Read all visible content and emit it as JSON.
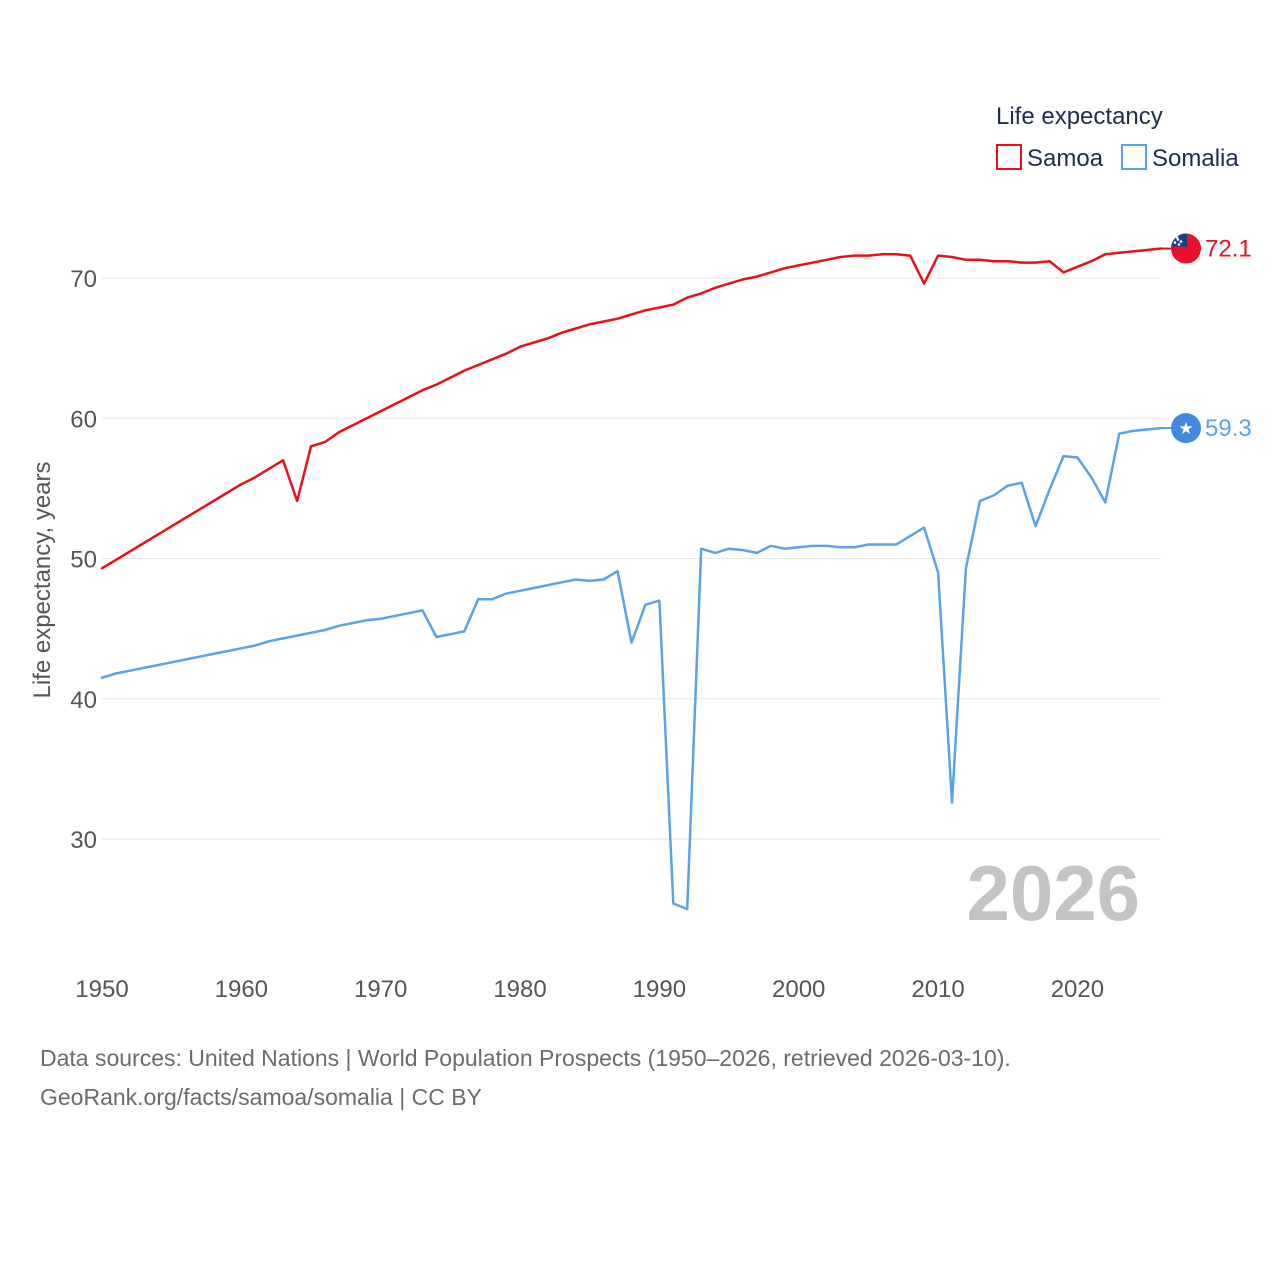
{
  "chart_data": {
    "type": "line",
    "legend": {
      "title": "Life expectancy",
      "placement": "top-right"
    },
    "ylabel": "Life expectancy, years",
    "xlabel": "",
    "xlim": [
      1950,
      2026
    ],
    "ylim": [
      21,
      78
    ],
    "x_ticks": [
      1950,
      1960,
      1970,
      1980,
      1990,
      2000,
      2010,
      2020
    ],
    "x_tick_labels": [
      "1950",
      "1960",
      "1970",
      "1980",
      "1990",
      "2000",
      "2010",
      "2020"
    ],
    "y_ticks": [
      30,
      40,
      50,
      60,
      70
    ],
    "y_tick_labels": [
      "30",
      "40",
      "50",
      "60",
      "70"
    ],
    "grid": "horizontal",
    "year_label": "2026",
    "series": [
      {
        "name": "Samoa",
        "color": "#e8101a",
        "flag": "samoa-flag",
        "end_label": "72.1",
        "x": [
          1950,
          1951,
          1952,
          1953,
          1954,
          1955,
          1956,
          1957,
          1958,
          1959,
          1960,
          1961,
          1962,
          1963,
          1964,
          1965,
          1966,
          1967,
          1968,
          1969,
          1970,
          1971,
          1972,
          1973,
          1974,
          1975,
          1976,
          1977,
          1978,
          1979,
          1980,
          1981,
          1982,
          1983,
          1984,
          1985,
          1986,
          1987,
          1988,
          1989,
          1990,
          1991,
          1992,
          1993,
          1994,
          1995,
          1996,
          1997,
          1998,
          1999,
          2000,
          2001,
          2002,
          2003,
          2004,
          2005,
          2006,
          2007,
          2008,
          2009,
          2010,
          2011,
          2012,
          2013,
          2014,
          2015,
          2016,
          2017,
          2018,
          2019,
          2020,
          2021,
          2022,
          2023,
          2024,
          2025,
          2026
        ],
        "values": [
          49.3,
          49.9,
          50.5,
          51.1,
          51.7,
          52.3,
          52.9,
          53.5,
          54.1,
          54.7,
          55.3,
          55.8,
          56.4,
          57.0,
          54.1,
          58.0,
          58.3,
          59.0,
          59.5,
          60.0,
          60.5,
          61.0,
          61.5,
          62.0,
          62.4,
          62.9,
          63.4,
          63.8,
          64.2,
          64.6,
          65.1,
          65.4,
          65.7,
          66.1,
          66.4,
          66.7,
          66.9,
          67.1,
          67.4,
          67.7,
          67.9,
          68.1,
          68.6,
          68.9,
          69.3,
          69.6,
          69.9,
          70.1,
          70.4,
          70.7,
          70.9,
          71.1,
          71.3,
          71.5,
          71.6,
          71.6,
          71.7,
          71.7,
          71.6,
          69.6,
          71.6,
          71.5,
          71.3,
          71.3,
          71.2,
          71.2,
          71.1,
          71.1,
          71.2,
          70.4,
          70.8,
          71.2,
          71.7,
          71.8,
          71.9,
          72.0,
          72.1
        ]
      },
      {
        "name": "Somalia",
        "color": "#5aa2e6",
        "flag": "somalia-flag",
        "end_label": "59.3",
        "x": [
          1950,
          1951,
          1952,
          1953,
          1954,
          1955,
          1956,
          1957,
          1958,
          1959,
          1960,
          1961,
          1962,
          1963,
          1964,
          1965,
          1966,
          1967,
          1968,
          1969,
          1970,
          1971,
          1972,
          1973,
          1974,
          1975,
          1976,
          1977,
          1978,
          1979,
          1980,
          1981,
          1982,
          1983,
          1984,
          1985,
          1986,
          1987,
          1988,
          1989,
          1990,
          1991,
          1992,
          1993,
          1994,
          1995,
          1996,
          1997,
          1998,
          1999,
          2000,
          2001,
          2002,
          2003,
          2004,
          2005,
          2006,
          2007,
          2008,
          2009,
          2010,
          2011,
          2012,
          2013,
          2014,
          2015,
          2016,
          2017,
          2018,
          2019,
          2020,
          2021,
          2022,
          2023,
          2024,
          2025,
          2026
        ],
        "values": [
          41.5,
          41.8,
          42.0,
          42.2,
          42.4,
          42.6,
          42.8,
          43.0,
          43.2,
          43.4,
          43.6,
          43.8,
          44.1,
          44.3,
          44.5,
          44.7,
          44.9,
          45.2,
          45.4,
          45.6,
          45.7,
          45.9,
          46.1,
          46.3,
          44.4,
          44.6,
          44.8,
          47.1,
          47.1,
          47.5,
          47.7,
          47.9,
          48.1,
          48.3,
          48.5,
          48.4,
          48.5,
          49.1,
          44.0,
          46.7,
          47.0,
          25.4,
          25.0,
          50.7,
          50.4,
          50.7,
          50.6,
          50.4,
          50.9,
          50.7,
          50.8,
          50.9,
          50.9,
          50.8,
          50.8,
          51.0,
          51.0,
          51.0,
          51.6,
          52.2,
          49.0,
          32.6,
          49.3,
          54.1,
          54.5,
          55.2,
          55.4,
          52.3,
          54.9,
          57.3,
          57.2,
          55.8,
          54.0,
          58.9,
          59.1,
          59.2,
          59.3
        ]
      }
    ]
  },
  "source": {
    "line1": "Data sources: United Nations | World Population Prospects (1950–2026, retrieved 2026-03-10).",
    "line2": "GeoRank.org/facts/samoa/somalia | CC BY"
  }
}
